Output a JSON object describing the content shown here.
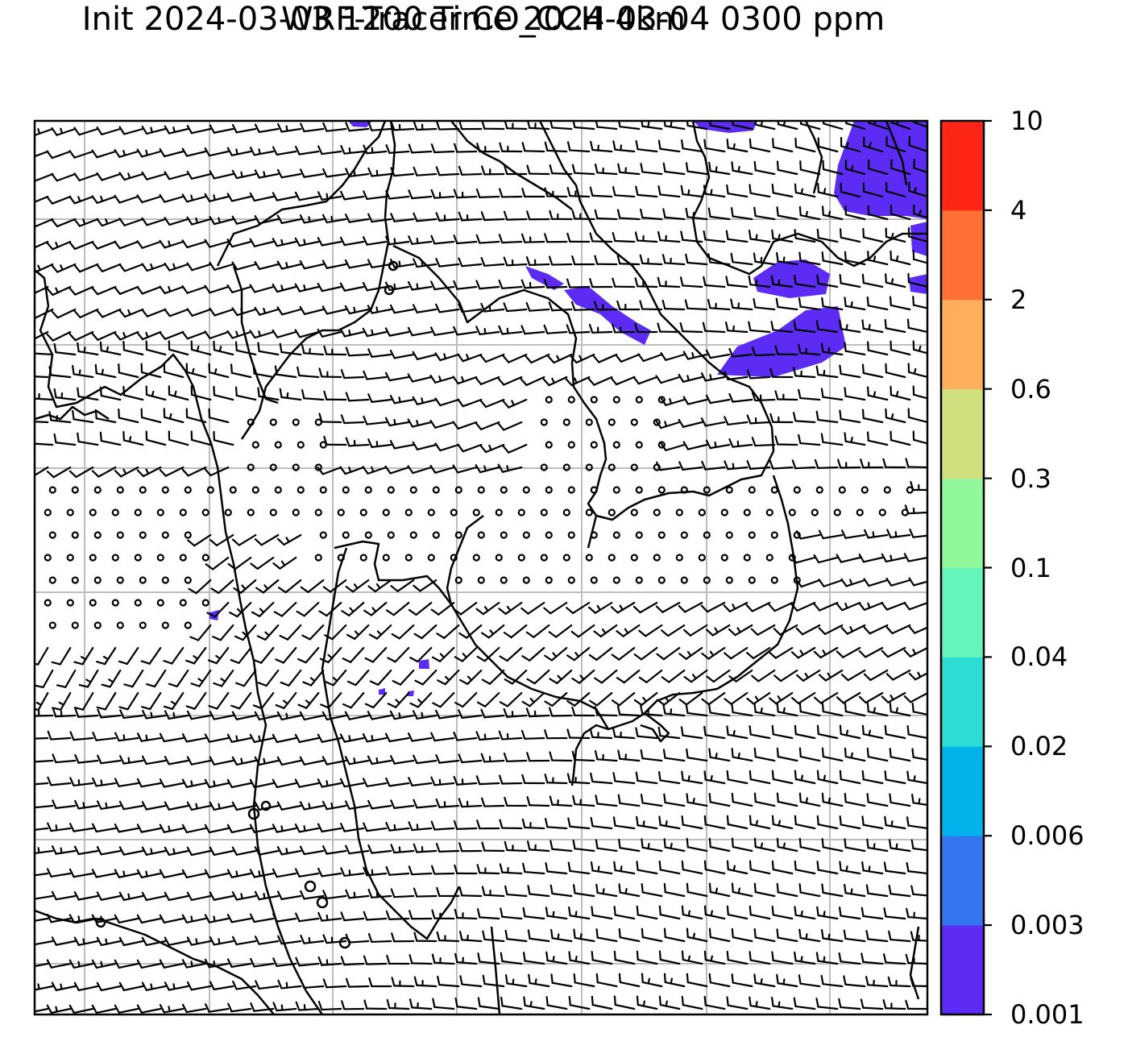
{
  "figure": {
    "title_line1": "WRF-Tracer CO_CCH 4km",
    "title_line2": "Init 2024-03-03 1200 Time 2024-03-04 0300 ppm"
  },
  "colorbar": {
    "levels": [
      "0.001",
      "0.003",
      "0.006",
      "0.02",
      "0.04",
      "0.1",
      "0.3",
      "0.6",
      "2",
      "4",
      "10"
    ],
    "colors": [
      "#5c2cf5",
      "#3476f0",
      "#00b4eb",
      "#2dddd3",
      "#62f6bb",
      "#90f79a",
      "#d0e07f",
      "#ffae5c",
      "#ff7034",
      "#ff2618"
    ]
  },
  "map": {
    "grid_color": "#bdbdbd",
    "tracer_color": "#5c2cf5",
    "coastline_color": "#000000",
    "wind_barb_color": "#000000",
    "gridlines": true
  }
}
